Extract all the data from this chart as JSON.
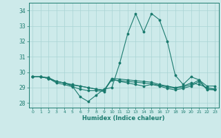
{
  "xlabel": "Humidex (Indice chaleur)",
  "background_color": "#cdeaea",
  "grid_color": "#a8d4d4",
  "line_color": "#1a7a6e",
  "xlim": [
    -0.5,
    23.5
  ],
  "ylim": [
    27.7,
    34.5
  ],
  "yticks": [
    28,
    29,
    30,
    31,
    32,
    33,
    34
  ],
  "xticks": [
    0,
    1,
    2,
    3,
    4,
    5,
    6,
    7,
    8,
    9,
    10,
    11,
    12,
    13,
    14,
    15,
    16,
    17,
    18,
    19,
    20,
    21,
    22,
    23
  ],
  "series": [
    {
      "x": [
        0,
        1,
        2,
        3,
        4,
        5,
        6,
        7,
        8,
        9,
        10,
        11,
        12,
        13,
        14,
        15,
        16,
        17,
        18,
        19,
        20,
        21,
        22,
        23
      ],
      "y": [
        29.7,
        29.7,
        29.6,
        29.4,
        29.3,
        29.1,
        28.4,
        28.1,
        28.5,
        28.9,
        29.0,
        30.6,
        32.5,
        33.8,
        32.6,
        33.8,
        33.4,
        32.0,
        29.8,
        29.2,
        29.7,
        29.5,
        29.1,
        29.1
      ]
    },
    {
      "x": [
        0,
        1,
        2,
        3,
        4,
        5,
        6,
        7,
        8,
        9,
        10,
        11,
        12,
        13,
        14,
        15,
        16,
        17,
        18,
        19,
        20,
        21,
        22,
        23
      ],
      "y": [
        29.7,
        29.7,
        29.6,
        29.4,
        29.3,
        29.2,
        29.1,
        29.0,
        28.9,
        28.8,
        29.6,
        29.55,
        29.5,
        29.45,
        29.4,
        29.35,
        29.2,
        29.1,
        29.0,
        29.1,
        29.3,
        29.2,
        29.0,
        28.9
      ]
    },
    {
      "x": [
        0,
        1,
        2,
        3,
        4,
        5,
        6,
        7,
        8,
        9,
        10,
        11,
        12,
        13,
        14,
        15,
        16,
        17,
        18,
        19,
        20,
        21,
        22,
        23
      ],
      "y": [
        29.7,
        29.7,
        29.65,
        29.4,
        29.3,
        29.15,
        29.1,
        29.0,
        28.9,
        28.85,
        29.5,
        29.45,
        29.4,
        29.35,
        29.3,
        29.25,
        29.15,
        29.05,
        28.95,
        29.05,
        29.2,
        29.5,
        28.9,
        28.9
      ]
    },
    {
      "x": [
        0,
        1,
        2,
        3,
        4,
        5,
        6,
        7,
        8,
        9,
        10,
        11,
        12,
        13,
        14,
        15,
        16,
        17,
        18,
        19,
        20,
        21,
        22,
        23
      ],
      "y": [
        29.7,
        29.7,
        29.6,
        29.3,
        29.2,
        29.05,
        28.9,
        28.8,
        28.8,
        28.75,
        29.55,
        29.4,
        29.3,
        29.2,
        29.1,
        29.2,
        29.1,
        28.95,
        28.85,
        28.95,
        29.1,
        29.4,
        28.88,
        28.85
      ]
    }
  ]
}
